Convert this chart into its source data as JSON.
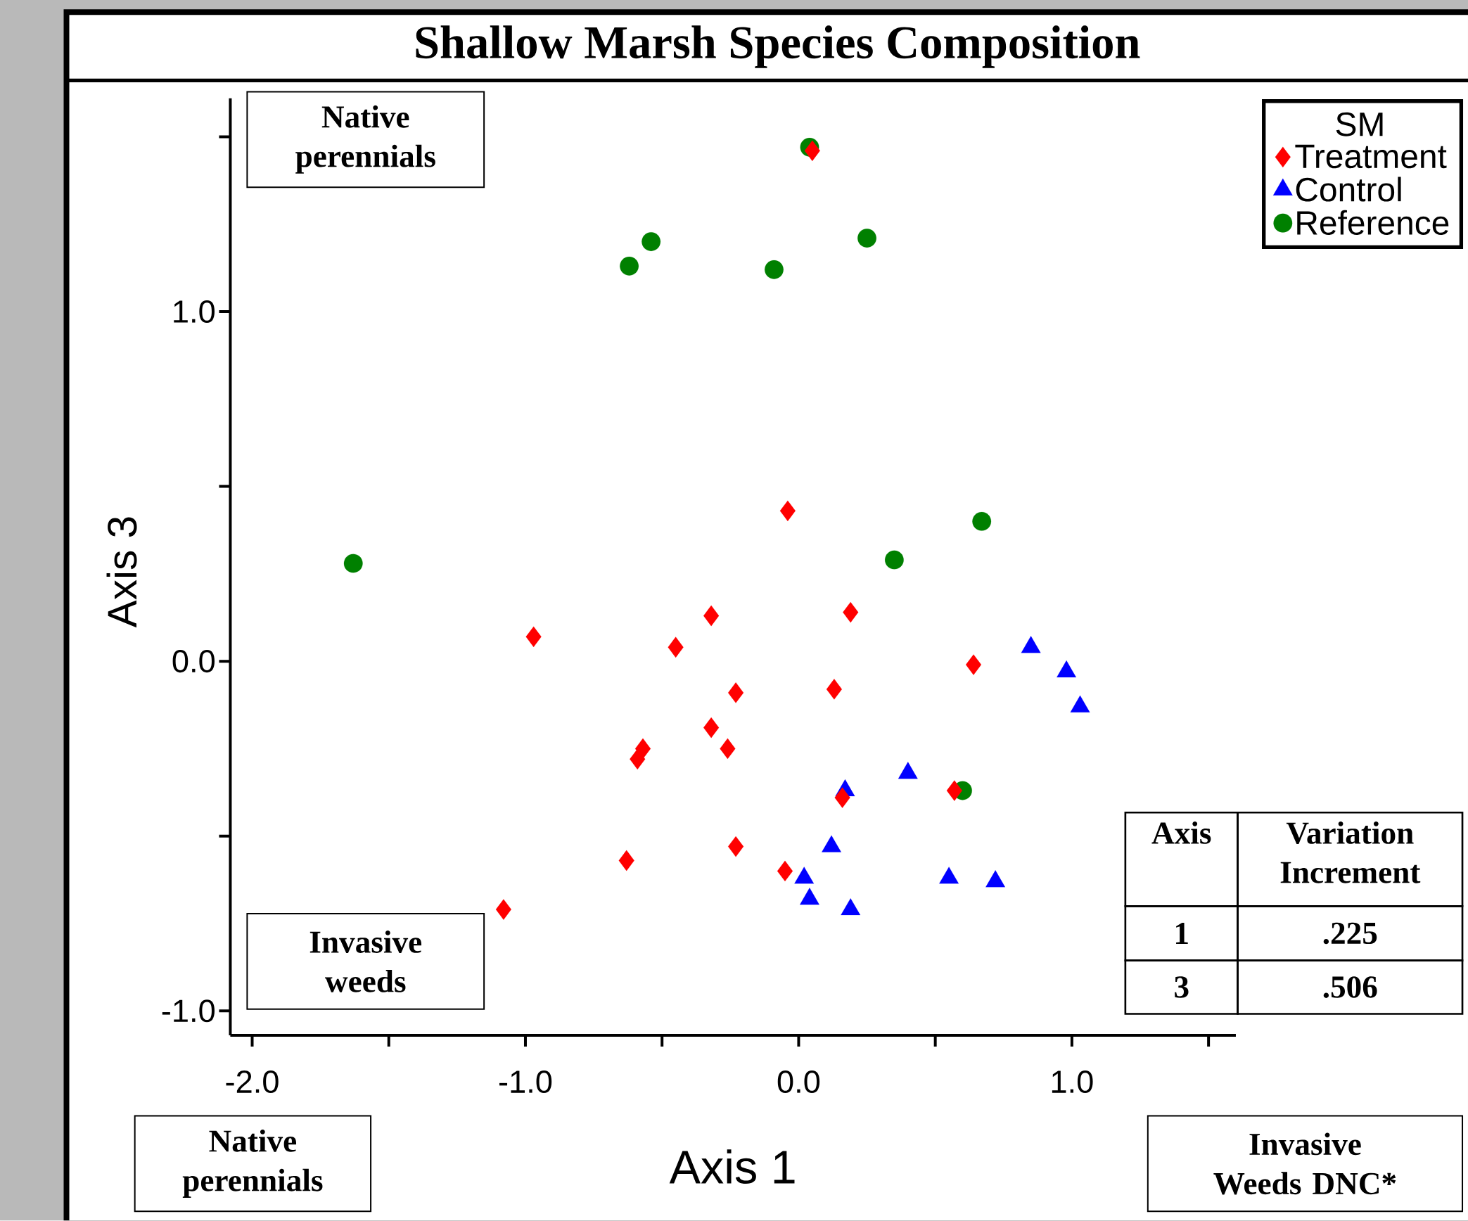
{
  "chart_data": {
    "type": "scatter",
    "title": "Shallow Marsh Species Composition",
    "xlabel": "Axis 1",
    "ylabel": "Axis 3",
    "legend_title": "SM",
    "legend": "top right",
    "xlim": [
      -2.08,
      1.6
    ],
    "ylim": [
      -1.07,
      1.61
    ],
    "xticks": [
      {
        "value": -2.0,
        "label": "-2.0"
      },
      {
        "value": -1.5,
        "label": null
      },
      {
        "value": -1.0,
        "label": "-1.0"
      },
      {
        "value": -0.5,
        "label": null
      },
      {
        "value": 0.0,
        "label": "0.0"
      },
      {
        "value": 0.5,
        "label": null
      },
      {
        "value": 1.0,
        "label": "1.0"
      },
      {
        "value": 1.5,
        "label": null
      }
    ],
    "yticks": [
      {
        "value": -1.0,
        "label": "-1.0"
      },
      {
        "value": -0.5,
        "label": null
      },
      {
        "value": 0.0,
        "label": "0.0"
      },
      {
        "value": 0.5,
        "label": null
      },
      {
        "value": 1.0,
        "label": "1.0"
      },
      {
        "value": 1.5,
        "label": null
      }
    ],
    "series": [
      {
        "name": "Treatment",
        "color": "#ff0000",
        "marker": "diamond",
        "x": [
          0.05,
          -0.04,
          -0.97,
          -0.32,
          -0.45,
          0.19,
          0.64,
          -0.23,
          0.13,
          -0.32,
          -0.57,
          -0.59,
          -0.26,
          0.16,
          0.57,
          -0.63,
          -0.23,
          -0.05,
          -1.08
        ],
        "values": [
          1.46,
          0.43,
          0.07,
          0.13,
          0.04,
          0.14,
          -0.01,
          -0.09,
          -0.08,
          -0.19,
          -0.25,
          -0.28,
          -0.25,
          -0.39,
          -0.37,
          -0.57,
          -0.53,
          -0.6,
          -0.71
        ]
      },
      {
        "name": "Control",
        "color": "#0000ff",
        "marker": "triangle",
        "x": [
          0.85,
          0.98,
          1.03,
          0.4,
          0.17,
          0.12,
          0.02,
          0.04,
          0.19,
          0.55,
          0.72
        ],
        "values": [
          0.04,
          -0.03,
          -0.13,
          -0.32,
          -0.37,
          -0.53,
          -0.62,
          -0.68,
          -0.71,
          -0.62,
          -0.63
        ]
      },
      {
        "name": "Reference",
        "color": "#008000",
        "marker": "circle",
        "x": [
          0.04,
          -0.54,
          -0.62,
          -0.09,
          0.25,
          0.67,
          0.35,
          -1.63,
          0.6
        ],
        "values": [
          1.47,
          1.2,
          1.13,
          1.12,
          1.21,
          0.4,
          0.29,
          0.28,
          -0.37
        ]
      }
    ],
    "annotations": [
      "Native perennials",
      "Invasive weeds",
      "Native perennials",
      "Invasive Weeds DNC*",
      "Axis",
      "Variation Increment",
      "1",
      ".225",
      "3",
      ".506"
    ]
  }
}
